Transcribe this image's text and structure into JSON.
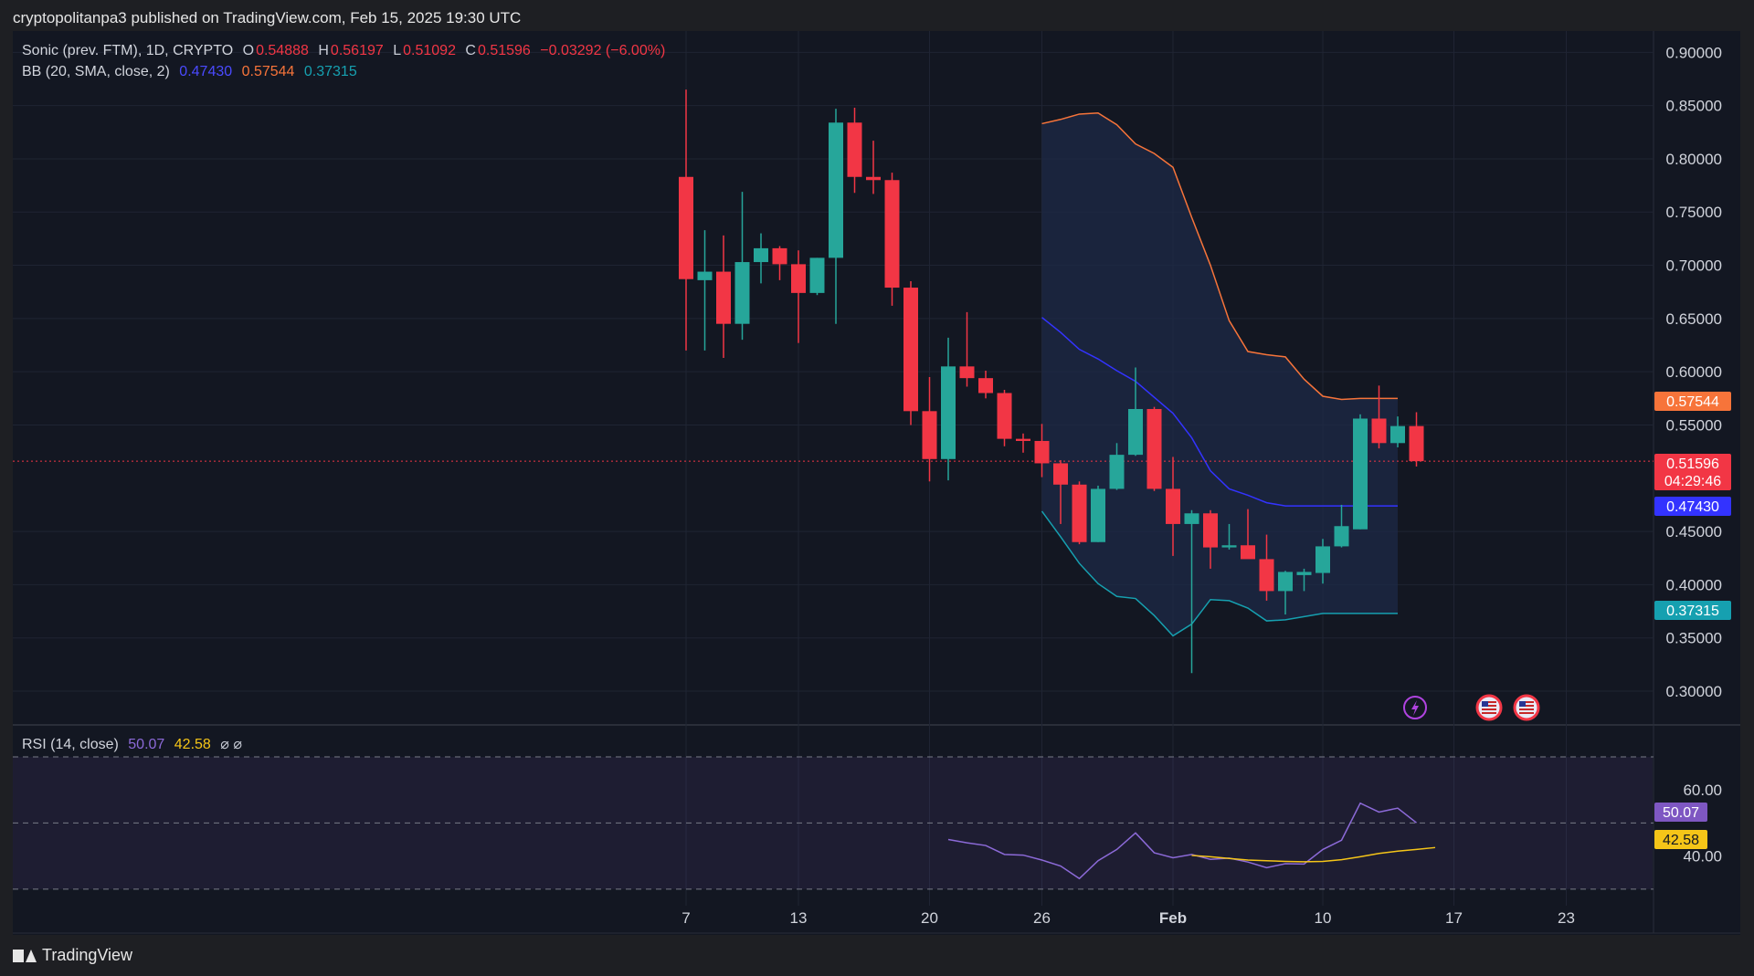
{
  "header": {
    "published": "cryptopolitanpa3 published on TradingView.com, Feb 15, 2025 19:30 UTC"
  },
  "legend": {
    "symbol": "Sonic (prev. FTM), 1D, CRYPTO",
    "open_label": "O",
    "open": "0.54888",
    "high_label": "H",
    "high": "0.56197",
    "low_label": "L",
    "low": "0.51092",
    "close_label": "C",
    "close": "0.51596",
    "change": "−0.03292 (−6.00%)",
    "bb_label": "BB (20, SMA, close, 2)",
    "bb_basis": "0.47430",
    "bb_upper": "0.57544",
    "bb_lower": "0.37315",
    "rsi_label": "RSI (14, close)",
    "rsi_value": "50.07",
    "rsi_ma": "42.58",
    "rsi_flags": "⌀ ⌀"
  },
  "badges": {
    "bb_upper": "0.57544",
    "price": "0.51596",
    "countdown": "04:29:46",
    "bb_basis": "0.47430",
    "bb_lower": "0.37315",
    "rsi_value": "50.07",
    "rsi_ma": "42.58"
  },
  "brand": {
    "name": "TradingView"
  },
  "colors": {
    "up": "#26a69a",
    "down": "#f23645",
    "bb_upper": "#f7743a",
    "bb_basis": "#3333ff",
    "bb_lower": "#16a0b0",
    "rsi": "#8c6ad8",
    "rsi_ma": "#f5c518"
  },
  "icons": [
    "lightning-icon",
    "us-flag-icon",
    "us-flag-icon"
  ],
  "chart_data": [
    {
      "type": "candlestick",
      "title": "Sonic (prev. FTM), 1D, CRYPTO",
      "x_ticks": [
        "7",
        "13",
        "20",
        "26",
        "Feb",
        "10",
        "17",
        "23"
      ],
      "y_ticks": [
        "0.90000",
        "0.85000",
        "0.80000",
        "0.75000",
        "0.70000",
        "0.65000",
        "0.60000",
        "0.55000",
        "0.45000",
        "0.40000",
        "0.35000",
        "0.30000"
      ],
      "ylim": [
        0.27,
        0.92
      ],
      "x_start": "2025-01-07",
      "candles": [
        {
          "o": 0.783,
          "h": 0.865,
          "l": 0.62,
          "c": 0.687
        },
        {
          "o": 0.686,
          "h": 0.733,
          "l": 0.62,
          "c": 0.694
        },
        {
          "o": 0.694,
          "h": 0.728,
          "l": 0.613,
          "c": 0.645
        },
        {
          "o": 0.645,
          "h": 0.769,
          "l": 0.63,
          "c": 0.703
        },
        {
          "o": 0.703,
          "h": 0.73,
          "l": 0.683,
          "c": 0.716
        },
        {
          "o": 0.716,
          "h": 0.718,
          "l": 0.686,
          "c": 0.701
        },
        {
          "o": 0.701,
          "h": 0.714,
          "l": 0.627,
          "c": 0.674
        },
        {
          "o": 0.674,
          "h": 0.707,
          "l": 0.672,
          "c": 0.707
        },
        {
          "o": 0.707,
          "h": 0.847,
          "l": 0.645,
          "c": 0.834
        },
        {
          "o": 0.834,
          "h": 0.848,
          "l": 0.768,
          "c": 0.783
        },
        {
          "o": 0.783,
          "h": 0.817,
          "l": 0.767,
          "c": 0.78
        },
        {
          "o": 0.78,
          "h": 0.787,
          "l": 0.662,
          "c": 0.679
        },
        {
          "o": 0.679,
          "h": 0.685,
          "l": 0.55,
          "c": 0.563
        },
        {
          "o": 0.563,
          "h": 0.595,
          "l": 0.497,
          "c": 0.518
        },
        {
          "o": 0.518,
          "h": 0.632,
          "l": 0.498,
          "c": 0.605
        },
        {
          "o": 0.605,
          "h": 0.656,
          "l": 0.586,
          "c": 0.594
        },
        {
          "o": 0.594,
          "h": 0.601,
          "l": 0.575,
          "c": 0.58
        },
        {
          "o": 0.58,
          "h": 0.583,
          "l": 0.53,
          "c": 0.537
        },
        {
          "o": 0.537,
          "h": 0.542,
          "l": 0.524,
          "c": 0.535
        },
        {
          "o": 0.535,
          "h": 0.551,
          "l": 0.501,
          "c": 0.514
        },
        {
          "o": 0.514,
          "h": 0.517,
          "l": 0.457,
          "c": 0.494
        },
        {
          "o": 0.494,
          "h": 0.497,
          "l": 0.438,
          "c": 0.44
        },
        {
          "o": 0.44,
          "h": 0.493,
          "l": 0.44,
          "c": 0.49
        },
        {
          "o": 0.49,
          "h": 0.533,
          "l": 0.489,
          "c": 0.522
        },
        {
          "o": 0.522,
          "h": 0.604,
          "l": 0.521,
          "c": 0.565
        },
        {
          "o": 0.565,
          "h": 0.567,
          "l": 0.488,
          "c": 0.49
        },
        {
          "o": 0.49,
          "h": 0.52,
          "l": 0.427,
          "c": 0.457
        },
        {
          "o": 0.457,
          "h": 0.47,
          "l": 0.317,
          "c": 0.467
        },
        {
          "o": 0.467,
          "h": 0.47,
          "l": 0.415,
          "c": 0.435
        },
        {
          "o": 0.435,
          "h": 0.457,
          "l": 0.433,
          "c": 0.437
        },
        {
          "o": 0.437,
          "h": 0.471,
          "l": 0.426,
          "c": 0.424
        },
        {
          "o": 0.424,
          "h": 0.447,
          "l": 0.385,
          "c": 0.394
        },
        {
          "o": 0.394,
          "h": 0.413,
          "l": 0.372,
          "c": 0.412
        },
        {
          "o": 0.409,
          "h": 0.415,
          "l": 0.394,
          "c": 0.412
        },
        {
          "o": 0.411,
          "h": 0.443,
          "l": 0.401,
          "c": 0.436
        },
        {
          "o": 0.436,
          "h": 0.475,
          "l": 0.435,
          "c": 0.455
        },
        {
          "o": 0.452,
          "h": 0.56,
          "l": 0.452,
          "c": 0.556
        },
        {
          "o": 0.556,
          "h": 0.587,
          "l": 0.528,
          "c": 0.533
        },
        {
          "o": 0.533,
          "h": 0.558,
          "l": 0.529,
          "c": 0.549
        },
        {
          "o": 0.549,
          "h": 0.562,
          "l": 0.511,
          "c": 0.516
        }
      ],
      "bb_start_index": 19,
      "bb_upper": [
        0.833,
        0.837,
        0.842,
        0.843,
        0.832,
        0.814,
        0.805,
        0.792,
        0.745,
        0.7,
        0.648,
        0.619,
        0.616,
        0.614,
        0.593,
        0.577,
        0.574,
        0.575,
        0.575,
        0.575
      ],
      "bb_basis": [
        0.651,
        0.637,
        0.621,
        0.612,
        0.601,
        0.591,
        0.576,
        0.561,
        0.538,
        0.507,
        0.49,
        0.484,
        0.477,
        0.474,
        0.474,
        0.474,
        0.474,
        0.474,
        0.474,
        0.474
      ],
      "bb_lower": [
        0.469,
        0.445,
        0.42,
        0.401,
        0.389,
        0.387,
        0.371,
        0.352,
        0.363,
        0.386,
        0.385,
        0.378,
        0.366,
        0.367,
        0.37,
        0.373,
        0.373,
        0.373,
        0.373,
        0.373
      ],
      "last_price": 0.51596
    },
    {
      "type": "line",
      "title": "RSI (14, close)",
      "y_ticks": [
        "60.00",
        "40.00"
      ],
      "ylim": [
        25,
        78
      ],
      "bands": [
        70,
        50,
        30
      ],
      "series": [
        {
          "name": "RSI",
          "start_index": 14,
          "values": [
            45.0,
            44.0,
            43.2,
            40.5,
            40.3,
            38.8,
            37.0,
            33.2,
            38.6,
            42.0,
            47.0,
            41.0,
            39.5,
            40.5,
            39.0,
            39.4,
            38.2,
            36.5,
            37.7,
            37.6,
            42.0,
            44.8,
            56.0,
            53.3,
            54.5,
            50.07
          ]
        },
        {
          "name": "RSI MA",
          "start_index": 27,
          "values": [
            40.2,
            39.8,
            39.3,
            38.8,
            38.6,
            38.4,
            38.3,
            38.4,
            38.9,
            39.8,
            40.8,
            41.5,
            42.0,
            42.58
          ]
        }
      ]
    }
  ]
}
